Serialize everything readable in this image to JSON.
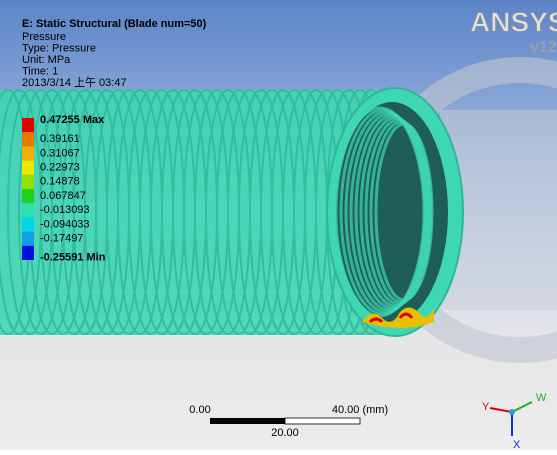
{
  "header": {
    "title": "E: Static Structural (Blade num=50)",
    "lines": [
      "Pressure",
      "Type: Pressure",
      "Unit: MPa",
      "Time: 1",
      "2013/3/14 上午 03:47"
    ]
  },
  "legend": [
    {
      "label": "0.47255 Max",
      "color": "#e00000"
    },
    {
      "label": "0.39161",
      "color": "#e87800"
    },
    {
      "label": "0.31067",
      "color": "#f0b000"
    },
    {
      "label": "0.22973",
      "color": "#e8e800"
    },
    {
      "label": "0.14878",
      "color": "#90e000"
    },
    {
      "label": "0.067847",
      "color": "#20d020"
    },
    {
      "label": "-0.013093",
      "color": "#30e0b0"
    },
    {
      "label": "-0.094033",
      "color": "#00d8e8"
    },
    {
      "label": "-0.17497",
      "color": "#10a0e8"
    },
    {
      "label": "-0.25591 Min",
      "color": "#0010d8"
    }
  ],
  "scale_bar": {
    "left": "0.00",
    "right": "40.00 (mm)",
    "middle": "20.00"
  },
  "triad": {
    "y": "Y",
    "z": "W",
    "x": "X"
  },
  "logo": {
    "name": "ANSYS",
    "version": "v12"
  }
}
